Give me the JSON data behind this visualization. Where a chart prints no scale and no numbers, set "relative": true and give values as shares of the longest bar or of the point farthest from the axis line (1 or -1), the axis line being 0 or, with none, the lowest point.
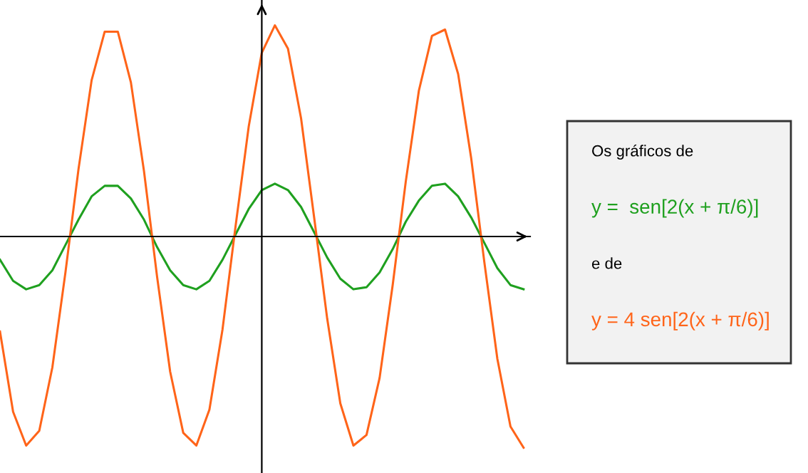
{
  "chart_data": {
    "type": "line",
    "relative": true,
    "categories": [
      null,
      null,
      null,
      null,
      null,
      null,
      null,
      null,
      null,
      null,
      null,
      null,
      null,
      null,
      null,
      null,
      null,
      null,
      null,
      null,
      null,
      null,
      null,
      null,
      null,
      null,
      null,
      null,
      null,
      null,
      null,
      null,
      null,
      null,
      null,
      null,
      null,
      null,
      null,
      null,
      null
    ],
    "series": [
      {
        "name": "y =  sen[2(x + π/6)]",
        "color": "#1fa01f",
        "values": [
          -0.11,
          -0.21,
          -0.25,
          -0.23,
          -0.16,
          -0.04,
          0.08,
          0.19,
          0.24,
          0.24,
          0.18,
          0.08,
          -0.05,
          -0.16,
          -0.23,
          -0.25,
          -0.21,
          -0.11,
          0.01,
          0.13,
          0.22,
          0.25,
          0.22,
          0.14,
          0.02,
          -0.1,
          -0.2,
          -0.25,
          -0.24,
          -0.17,
          -0.06,
          0.07,
          0.17,
          0.24,
          0.25,
          0.19,
          0.09,
          -0.03,
          -0.15,
          -0.23,
          -0.25
        ]
      },
      {
        "name": "y = 4 sen[2(x + π/6)]",
        "color": "#ff6419",
        "values": [
          -0.45,
          -0.83,
          -0.99,
          -0.92,
          -0.62,
          -0.17,
          0.32,
          0.74,
          0.97,
          0.97,
          0.73,
          0.31,
          -0.19,
          -0.64,
          -0.93,
          -0.99,
          -0.82,
          -0.44,
          0.05,
          0.52,
          0.87,
          1.0,
          0.89,
          0.56,
          0.09,
          -0.39,
          -0.79,
          -0.99,
          -0.94,
          -0.67,
          -0.23,
          0.26,
          0.69,
          0.95,
          0.98,
          0.77,
          0.37,
          -0.12,
          -0.58,
          -0.9,
          -1.0
        ]
      }
    ],
    "annotations": [
      "Os gráficos de",
      "e de"
    ],
    "legend": "right",
    "marker": "none",
    "line_style": "solid"
  }
}
